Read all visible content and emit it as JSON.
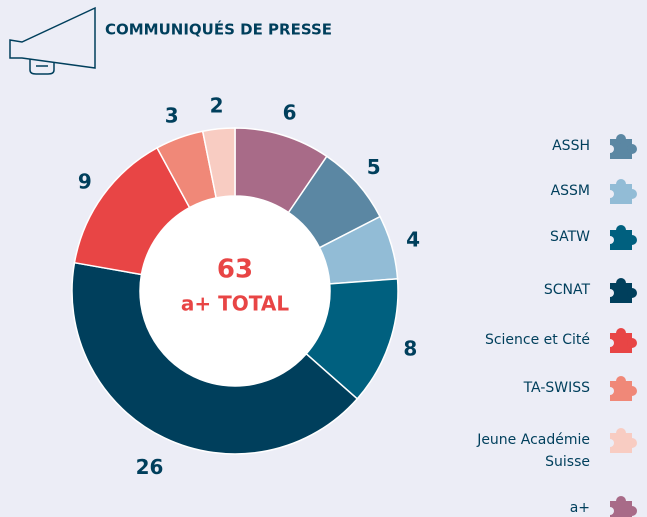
{
  "header": {
    "title": "COMMUNIQUÉS DE PRESSE"
  },
  "chart_data": {
    "type": "donut",
    "categories": [
      "ASSH",
      "ASSM",
      "SATW",
      "SCNAT",
      "Science et Cité",
      "TA-SWISS",
      "Jeune Académie Suisse",
      "a+"
    ],
    "values": [
      5,
      4,
      8,
      26,
      9,
      3,
      2,
      6
    ],
    "colors": [
      "#5b87a3",
      "#92bcd6",
      "#00607f",
      "#003f5c",
      "#e84545",
      "#f08878",
      "#f8ccc2",
      "#a86b88"
    ],
    "total": 63,
    "total_label": "a+ TOTAL"
  }
}
